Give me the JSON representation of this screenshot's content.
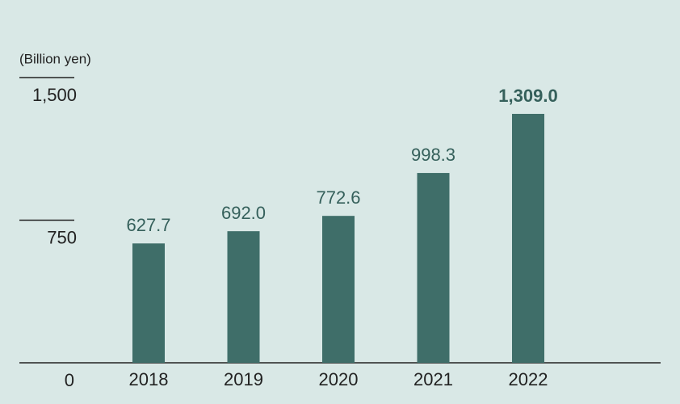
{
  "chart_data": {
    "type": "bar",
    "y_axis_label": "(Billion yen)",
    "categories": [
      "2018",
      "2019",
      "2020",
      "2021",
      "2022"
    ],
    "values": [
      627.7,
      692.0,
      772.6,
      998.3,
      1309.0
    ],
    "value_labels": [
      "627.7",
      "692.0",
      "772.6",
      "998.3",
      "1,309.0"
    ],
    "color": "#3f6e69",
    "ylim": [
      0,
      1500
    ],
    "yticks": [
      0,
      750,
      {
        "value": 1500,
        "label": "1,500"
      }
    ]
  }
}
